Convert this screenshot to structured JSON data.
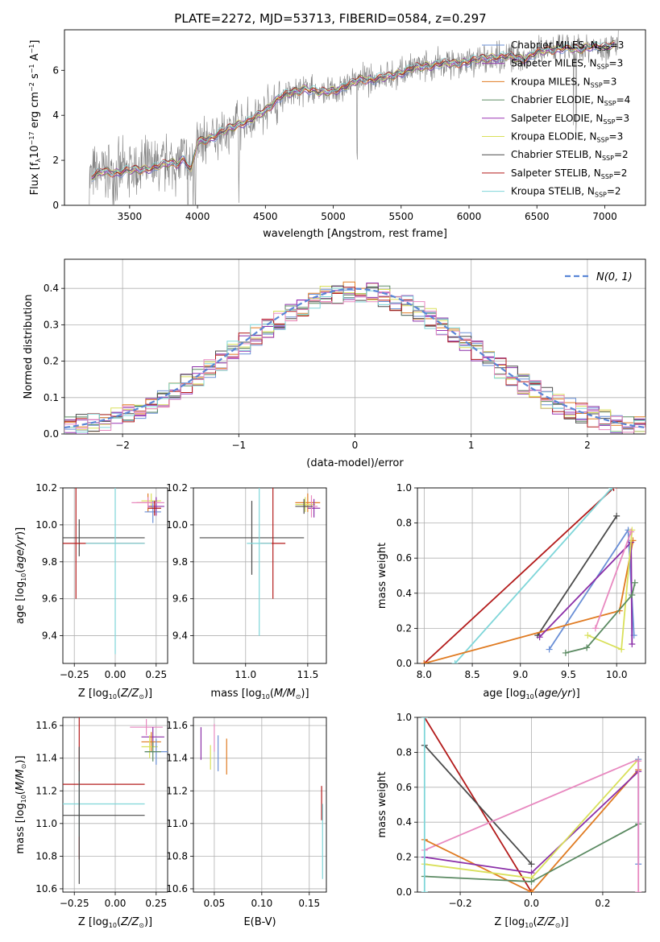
{
  "chart_data": [
    {
      "id": "spectrum",
      "type": "line",
      "title": "PLATE=2272, MJD=53713, FIBERID=0584, z=0.297",
      "xlabel": "wavelength [Angstrom, rest frame]",
      "ylabel": "Flux [f_λ 10^-17 erg cm^-2 s^-1 A^-1]",
      "xlim": [
        3020,
        7300
      ],
      "ylim": [
        0,
        7.8
      ],
      "xticks": [
        3500,
        4000,
        4500,
        5000,
        5500,
        6000,
        6500,
        7000
      ],
      "yticks": [
        0,
        2,
        4,
        6
      ],
      "legend_position": "top-right",
      "legend": [
        {
          "label": "Chabrier MILES, N",
          "sub": "SSP",
          "n": "=3",
          "color": "#6a8fd6"
        },
        {
          "label": "Salpeter MILES, N",
          "sub": "SSP",
          "n": "=3",
          "color": "#8b2fa8"
        },
        {
          "label": "Kroupa MILES, N",
          "sub": "SSP",
          "n": "=3",
          "color": "#e07b22"
        },
        {
          "label": "Chabrier ELODIE, N",
          "sub": "SSP",
          "n": "=4",
          "color": "#5b8a62"
        },
        {
          "label": "Salpeter ELODIE, N",
          "sub": "SSP",
          "n": "=3",
          "color": "#9b37b5"
        },
        {
          "label": "Kroupa ELODIE, N",
          "sub": "SSP",
          "n": "=3",
          "color": "#d9e05a"
        },
        {
          "label": "Chabrier STELIB, N",
          "sub": "SSP",
          "n": "=2",
          "color": "#4a4a4a"
        },
        {
          "label": "Salpeter STELIB, N",
          "sub": "SSP",
          "n": "=2",
          "color": "#b31b1b"
        },
        {
          "label": "Kroupa STELIB, N",
          "sub": "SSP",
          "n": "=2",
          "color": "#7fd6d9"
        }
      ],
      "continuum_x": [
        3200,
        3300,
        3400,
        3500,
        3600,
        3700,
        3800,
        3850,
        3900,
        3950,
        4000,
        4100,
        4200,
        4300,
        4400,
        4500,
        4600,
        4700,
        4800,
        4900,
        5000,
        5100,
        5200,
        5300,
        5400,
        5500,
        5600,
        5700,
        5800,
        5900,
        6000,
        6100,
        6200,
        6300,
        6400,
        6500,
        6600,
        6700,
        6800,
        6900,
        7000,
        7100
      ],
      "continuum_y": [
        1.2,
        1.5,
        1.45,
        1.55,
        1.6,
        1.7,
        1.9,
        1.85,
        2.1,
        1.5,
        2.8,
        3.0,
        3.3,
        3.6,
        3.8,
        4.2,
        4.8,
        5.0,
        5.2,
        5.0,
        5.1,
        5.3,
        5.6,
        5.6,
        5.7,
        5.9,
        6.1,
        6.2,
        6.3,
        6.3,
        6.4,
        6.5,
        6.6,
        6.6,
        6.5,
        6.8,
        6.9,
        7.0,
        6.9,
        7.1,
        7.0,
        7.2
      ],
      "data_color": "#7f7f7f"
    },
    {
      "id": "residuals",
      "type": "line",
      "xlabel": "(data-model)/error",
      "ylabel": "Normed distribution",
      "xlim": [
        -2.5,
        2.5
      ],
      "ylim": [
        0,
        0.48
      ],
      "xticks": [
        -2,
        -1,
        0,
        1,
        2
      ],
      "yticks": [
        0.0,
        0.1,
        0.2,
        0.3,
        0.4
      ],
      "legend_position": "top-right",
      "gaussian_label": "N(0, 1)",
      "gaussian_color": "#5a86d6",
      "hist_colors": [
        "#6a8fd6",
        "#8b2fa8",
        "#e07b22",
        "#5b8a62",
        "#9b37b5",
        "#d9e05a",
        "#4a4a4a",
        "#b31b1b",
        "#7fd6d9",
        "#e889c0"
      ]
    },
    {
      "id": "age_vs_Z",
      "type": "scatter",
      "xlabel": "Z [log10(Z/Z⊙)]",
      "ylabel": "age [log10(age/yr)]",
      "xlim": [
        -0.32,
        0.32
      ],
      "ylim": [
        9.25,
        10.2
      ],
      "xticks": [
        -0.25,
        0.0,
        0.25
      ],
      "yticks": [
        9.4,
        9.6,
        9.8,
        10.0,
        10.2
      ],
      "errorbars": [
        {
          "x": 0.2,
          "y": 10.12,
          "xerr": 0.07,
          "yerr": 0.05,
          "color": "#e07b22"
        },
        {
          "x": 0.22,
          "y": 10.13,
          "xerr": 0.06,
          "yerr": 0.04,
          "color": "#d9e05a"
        },
        {
          "x": 0.25,
          "y": 10.1,
          "xerr": 0.05,
          "yerr": 0.05,
          "color": "#8b2fa8"
        },
        {
          "x": 0.23,
          "y": 10.07,
          "xerr": 0.05,
          "yerr": 0.06,
          "color": "#6a8fd6"
        },
        {
          "x": 0.2,
          "y": 10.12,
          "xerr": 0.1,
          "yerr": 0.03,
          "color": "#e889c0"
        },
        {
          "x": 0.24,
          "y": 10.09,
          "xerr": 0.04,
          "yerr": 0.04,
          "color": "#b31b1b"
        },
        {
          "x": -0.22,
          "y": 9.93,
          "xerr": 0.4,
          "yerr": 0.1,
          "color": "#4a4a4a"
        },
        {
          "x": -0.24,
          "y": 9.9,
          "xerr": 0.42,
          "yerr": 0.3,
          "color": "#b31b1b"
        },
        {
          "x": 0.0,
          "y": 9.9,
          "xerr": 0.18,
          "yerr": 0.6,
          "color": "#7fd6d9"
        }
      ]
    },
    {
      "id": "age_vs_mass",
      "type": "scatter",
      "xlabel": "mass [log10(M/M⊙)]",
      "ylabel": "",
      "xlim": [
        10.58,
        11.65
      ],
      "ylim": [
        9.25,
        10.2
      ],
      "xticks": [
        11.0,
        11.5
      ],
      "yticks": [
        9.4,
        9.6,
        9.8,
        10.0,
        10.2
      ],
      "errorbars": [
        {
          "x": 11.5,
          "y": 10.12,
          "xerr": 0.1,
          "yerr": 0.05,
          "color": "#e07b22"
        },
        {
          "x": 11.48,
          "y": 10.11,
          "xerr": 0.08,
          "yerr": 0.04,
          "color": "#d9e05a"
        },
        {
          "x": 11.55,
          "y": 10.09,
          "xerr": 0.05,
          "yerr": 0.05,
          "color": "#8b2fa8"
        },
        {
          "x": 11.53,
          "y": 10.1,
          "xerr": 0.05,
          "yerr": 0.06,
          "color": "#e889c0"
        },
        {
          "x": 11.47,
          "y": 10.1,
          "xerr": 0.07,
          "yerr": 0.04,
          "color": "#4a4a4a"
        },
        {
          "x": 11.05,
          "y": 9.93,
          "xerr": 0.42,
          "yerr": 0.2,
          "color": "#4a4a4a"
        },
        {
          "x": 11.22,
          "y": 9.9,
          "xerr": 0.1,
          "yerr": 0.3,
          "color": "#b31b1b"
        },
        {
          "x": 11.11,
          "y": 9.9,
          "xerr": 0.1,
          "yerr": 0.5,
          "color": "#7fd6d9"
        }
      ]
    },
    {
      "id": "weight_vs_age",
      "type": "line",
      "xlabel": "age [log10(age/yr)]",
      "ylabel": "mass weight",
      "xlim": [
        7.93,
        10.3
      ],
      "ylim": [
        0,
        1.0
      ],
      "xticks": [
        8.0,
        8.5,
        9.0,
        9.5,
        10.0
      ],
      "yticks": [
        0.0,
        0.2,
        0.4,
        0.6,
        0.8,
        1.0
      ],
      "series": [
        {
          "color": "#b31b1b",
          "points": [
            [
              8.0,
              0.0
            ],
            [
              9.97,
              1.0
            ]
          ]
        },
        {
          "color": "#7fd6d9",
          "points": [
            [
              8.32,
              0.0
            ],
            [
              9.95,
              1.0
            ]
          ]
        },
        {
          "color": "#4a4a4a",
          "points": [
            [
              9.18,
              0.16
            ],
            [
              10.0,
              0.84
            ]
          ]
        },
        {
          "color": "#6a8fd6",
          "points": [
            [
              9.3,
              0.08
            ],
            [
              10.12,
              0.76
            ],
            [
              10.18,
              0.16
            ]
          ]
        },
        {
          "color": "#e07b22",
          "points": [
            [
              8.0,
              0.0
            ],
            [
              10.03,
              0.3
            ],
            [
              10.17,
              0.7
            ]
          ]
        },
        {
          "color": "#8b2fa8",
          "points": [
            [
              9.2,
              0.15
            ],
            [
              10.15,
              0.69
            ],
            [
              10.16,
              0.11
            ]
          ]
        },
        {
          "color": "#d9e05a",
          "points": [
            [
              9.7,
              0.16
            ],
            [
              10.05,
              0.08
            ],
            [
              10.16,
              0.76
            ]
          ]
        },
        {
          "color": "#5b8a62",
          "points": [
            [
              9.47,
              0.06
            ],
            [
              9.69,
              0.09
            ],
            [
              10.16,
              0.39
            ],
            [
              10.19,
              0.46
            ]
          ]
        },
        {
          "color": "#e889c0",
          "points": [
            [
              9.78,
              0.2
            ],
            [
              10.15,
              0.75
            ]
          ]
        }
      ]
    },
    {
      "id": "mass_vs_Z",
      "type": "scatter",
      "xlabel": "Z [log10(Z/Z⊙)]",
      "ylabel": "mass [log10(M/M⊙)]",
      "xlim": [
        -0.32,
        0.32
      ],
      "ylim": [
        10.58,
        11.65
      ],
      "xticks": [
        -0.25,
        0.0,
        0.25
      ],
      "yticks": [
        10.6,
        10.8,
        11.0,
        11.2,
        11.4,
        11.6
      ],
      "errorbars": [
        {
          "x": 0.19,
          "y": 11.59,
          "xerr": 0.1,
          "yerr": 0.05,
          "color": "#e889c0"
        },
        {
          "x": 0.23,
          "y": 11.53,
          "xerr": 0.07,
          "yerr": 0.06,
          "color": "#8b2fa8"
        },
        {
          "x": 0.22,
          "y": 11.5,
          "xerr": 0.06,
          "yerr": 0.06,
          "color": "#e07b22"
        },
        {
          "x": 0.21,
          "y": 11.47,
          "xerr": 0.05,
          "yerr": 0.07,
          "color": "#d9e05a"
        },
        {
          "x": 0.25,
          "y": 11.44,
          "xerr": 0.07,
          "yerr": 0.08,
          "color": "#6a8fd6"
        },
        {
          "x": 0.23,
          "y": 11.44,
          "xerr": 0.05,
          "yerr": 0.06,
          "color": "#5b8a62"
        },
        {
          "x": -0.22,
          "y": 11.24,
          "xerr": 0.4,
          "yerr": 0.46,
          "color": "#b31b1b"
        },
        {
          "x": -0.22,
          "y": 11.12,
          "xerr": 0.4,
          "yerr": 0.2,
          "color": "#7fd6d9"
        },
        {
          "x": -0.22,
          "y": 11.05,
          "xerr": 0.4,
          "yerr": 0.42,
          "color": "#4a4a4a"
        }
      ]
    },
    {
      "id": "mass_vs_EBV",
      "type": "scatter",
      "xlabel": "E(B-V)",
      "ylabel": "",
      "xlim": [
        0.028,
        0.168
      ],
      "ylim": [
        10.58,
        11.65
      ],
      "xticks": [
        0.05,
        0.1,
        0.15
      ],
      "yticks": [
        10.6,
        10.8,
        11.0,
        11.2,
        11.4,
        11.6
      ],
      "vbars": [
        {
          "x": 0.036,
          "y0": 11.39,
          "y1": 11.59,
          "color": "#8b2fa8"
        },
        {
          "x": 0.046,
          "y0": 11.33,
          "y1": 11.48,
          "color": "#d9e05a"
        },
        {
          "x": 0.05,
          "y0": 11.44,
          "y1": 11.61,
          "color": "#e889c0"
        },
        {
          "x": 0.054,
          "y0": 11.32,
          "y1": 11.54,
          "color": "#6a8fd6"
        },
        {
          "x": 0.063,
          "y0": 11.3,
          "y1": 11.52,
          "color": "#e07b22"
        },
        {
          "x": 0.163,
          "y0": 11.02,
          "y1": 11.23,
          "color": "#b31b1b"
        },
        {
          "x": 0.164,
          "y0": 10.66,
          "y1": 11.12,
          "color": "#7fd6d9"
        }
      ]
    },
    {
      "id": "weight_vs_Z",
      "type": "line",
      "xlabel": "Z [log10(Z/Z⊙)]",
      "ylabel": "mass weight",
      "xlim": [
        -0.32,
        0.32
      ],
      "ylim": [
        0,
        1.0
      ],
      "xticks": [
        -0.2,
        0.0,
        0.2
      ],
      "yticks": [
        0.0,
        0.2,
        0.4,
        0.6,
        0.8,
        1.0
      ],
      "series": [
        {
          "color": "#b31b1b",
          "points": [
            [
              -0.3,
              1.0
            ],
            [
              0.0,
              0.0
            ]
          ]
        },
        {
          "color": "#4a4a4a",
          "points": [
            [
              -0.3,
              0.84
            ],
            [
              0.0,
              0.16
            ]
          ]
        },
        {
          "color": "#e889c0",
          "points": [
            [
              -0.3,
              0.24
            ],
            [
              0.3,
              0.76
            ]
          ]
        },
        {
          "color": "#e07b22",
          "points": [
            [
              -0.3,
              0.3
            ],
            [
              0.0,
              0.0
            ],
            [
              0.3,
              0.7
            ]
          ]
        },
        {
          "color": "#8b2fa8",
          "points": [
            [
              -0.3,
              0.2
            ],
            [
              0.0,
              0.11
            ],
            [
              0.3,
              0.69
            ]
          ]
        },
        {
          "color": "#d9e05a",
          "points": [
            [
              -0.3,
              0.16
            ],
            [
              0.0,
              0.08
            ],
            [
              0.3,
              0.76
            ]
          ]
        },
        {
          "color": "#5b8a62",
          "points": [
            [
              -0.3,
              0.09
            ],
            [
              0.0,
              0.06
            ],
            [
              0.3,
              0.39
            ]
          ]
        },
        {
          "color": "#6a8fd6",
          "points": [
            [
              0.3,
              0.76
            ],
            [
              0.3,
              0.16
            ]
          ]
        },
        {
          "color": "#7fd6d9",
          "points": [
            [
              -0.3,
              1.0
            ],
            [
              -0.3,
              0.0
            ]
          ]
        },
        {
          "color": "#e889c0",
          "points": [
            [
              0.3,
              0.75
            ],
            [
              0.3,
              0.0
            ]
          ]
        }
      ]
    }
  ]
}
